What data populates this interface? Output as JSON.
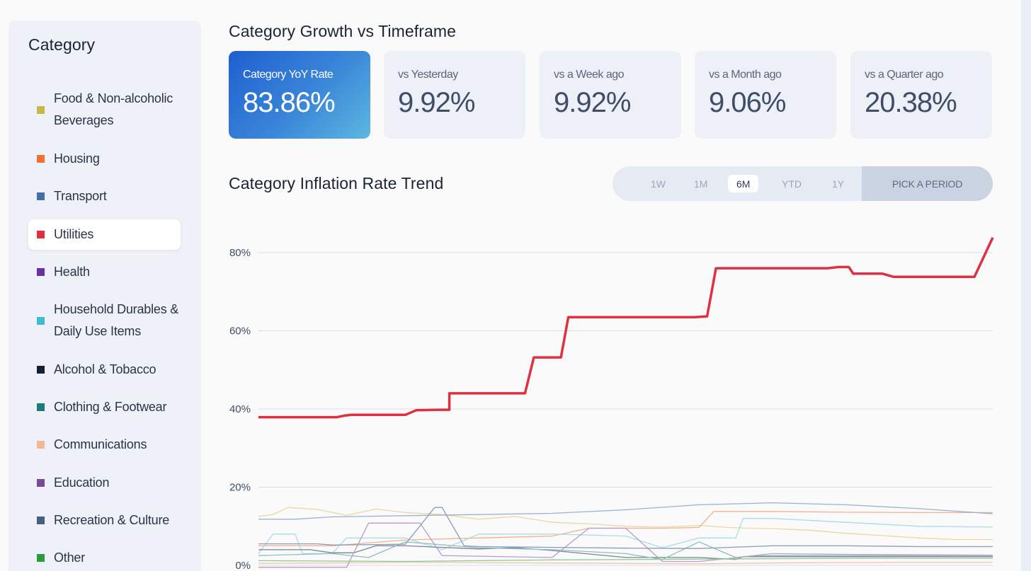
{
  "sidebar": {
    "title": "Category",
    "items": [
      {
        "label": "Food & Non-alcoholic Beverages",
        "color": "#c8b84a",
        "selected": false
      },
      {
        "label": "Housing",
        "color": "#f07030",
        "selected": false
      },
      {
        "label": "Transport",
        "color": "#4470a8",
        "selected": false
      },
      {
        "label": "Utilities",
        "color": "#e03040",
        "selected": true
      },
      {
        "label": "Health",
        "color": "#6a30a0",
        "selected": false
      },
      {
        "label": "Household Durables & Daily Use Items",
        "color": "#40bcd0",
        "selected": false
      },
      {
        "label": "Alcohol & Tobacco",
        "color": "#152030",
        "selected": false
      },
      {
        "label": "Clothing & Footwear",
        "color": "#207a78",
        "selected": false
      },
      {
        "label": "Communications",
        "color": "#f4b890",
        "selected": false
      },
      {
        "label": "Education",
        "color": "#7a4a9a",
        "selected": false
      },
      {
        "label": "Recreation & Culture",
        "color": "#465e84",
        "selected": false
      },
      {
        "label": "Other",
        "color": "#2a9a3a",
        "selected": false
      }
    ]
  },
  "growth": {
    "title": "Category Growth vs Timeframe",
    "cards": [
      {
        "label": "Category YoY Rate",
        "value": "83.86%"
      },
      {
        "label": "vs Yesterday",
        "value": "9.92%"
      },
      {
        "label": "vs a Week ago",
        "value": "9.92%"
      },
      {
        "label": "vs a Month ago",
        "value": "9.06%"
      },
      {
        "label": "vs a Quarter ago",
        "value": "20.38%"
      }
    ]
  },
  "trend": {
    "title": "Category Inflation Rate Trend",
    "periods": [
      "1W",
      "1M",
      "6M",
      "YTD",
      "1Y"
    ],
    "active_period": "6M",
    "pick_label": "PICK A PERIOD"
  },
  "chart_data": {
    "type": "line",
    "y_ticks": [
      "0%",
      "20%",
      "40%",
      "60%",
      "80%"
    ],
    "ylim": [
      0,
      88
    ],
    "grid": true,
    "highlight_color": "#e03040",
    "series": [
      {
        "category": "Utilities",
        "color": "#e03040",
        "highlight": true,
        "x": [
          0,
          0.055,
          0.107,
          0.117,
          0.127,
          0.158,
          0.2,
          0.215,
          0.245,
          0.26,
          0.26,
          0.363,
          0.375,
          0.412,
          0.422,
          0.594,
          0.611,
          0.623,
          0.642,
          0.663,
          0.775,
          0.79,
          0.804,
          0.81,
          0.82,
          0.85,
          0.865,
          0.872,
          0.95,
          0.975,
          1.0
        ],
        "values": [
          37.9,
          37.9,
          37.9,
          38.3,
          38.5,
          38.5,
          38.5,
          39.7,
          39.8,
          39.8,
          44.0,
          44.0,
          53.2,
          53.2,
          63.5,
          63.5,
          63.7,
          76.0,
          76.0,
          76.0,
          76.0,
          76.3,
          76.3,
          74.6,
          74.6,
          74.6,
          73.8,
          73.8,
          73.8,
          73.8,
          83.86
        ]
      },
      {
        "category": "Food & Non-alcoholic Beverages",
        "color": "#e8d9a0",
        "highlight": false,
        "x": [
          0,
          0.02,
          0.04,
          0.08,
          0.12,
          0.16,
          0.2,
          0.25,
          0.3,
          0.35,
          0.4,
          0.45,
          0.5,
          0.55,
          0.6,
          0.65,
          0.7,
          0.75,
          0.8,
          0.85,
          0.9,
          0.95,
          1.0
        ],
        "values": [
          12.5,
          13.0,
          14.8,
          14.3,
          12.8,
          14.4,
          13.5,
          13.0,
          11.8,
          12.5,
          11.0,
          10.6,
          10.0,
          9.8,
          10.2,
          9.6,
          9.4,
          9.0,
          8.2,
          7.6,
          7.0,
          6.6,
          6.6
        ]
      },
      {
        "category": "Housing",
        "color": "#f5b08a",
        "highlight": false,
        "x": [
          0,
          0.1,
          0.2,
          0.3,
          0.4,
          0.45,
          0.55,
          0.6,
          0.62,
          0.7,
          0.8,
          0.9,
          1.0
        ],
        "values": [
          5.0,
          5.0,
          6.5,
          7.0,
          7.5,
          9.5,
          9.5,
          9.7,
          13.8,
          13.8,
          13.6,
          13.5,
          13.5
        ]
      },
      {
        "category": "Transport",
        "color": "#9cb0d4",
        "highlight": false,
        "x": [
          0,
          0.05,
          0.1,
          0.2,
          0.3,
          0.4,
          0.5,
          0.6,
          0.7,
          0.8,
          0.9,
          1.0
        ],
        "values": [
          11.8,
          11.8,
          12.4,
          12.7,
          13.0,
          13.3,
          14.2,
          15.5,
          16.0,
          15.5,
          14.5,
          13.2
        ]
      },
      {
        "category": "Household Durables & Daily Use Items",
        "color": "#a8dce6",
        "highlight": false,
        "x": [
          0,
          0.02,
          0.05,
          0.06,
          0.1,
          0.12,
          0.2,
          0.25,
          0.3,
          0.4,
          0.5,
          0.55,
          0.6,
          0.65,
          0.66,
          0.7,
          0.8,
          0.9,
          1.0
        ],
        "values": [
          3.0,
          8.0,
          8.0,
          3.0,
          3.0,
          7.0,
          7.0,
          4.0,
          8.0,
          8.0,
          7.5,
          4.5,
          7.0,
          7.0,
          12.0,
          12.0,
          11.0,
          10.0,
          9.8
        ]
      },
      {
        "category": "Alcohol & Tobacco",
        "color": "#7a8294",
        "highlight": false,
        "x": [
          0,
          0.07,
          0.1,
          0.13,
          0.16,
          0.2,
          0.3,
          0.35,
          0.4,
          0.5,
          0.6,
          0.65,
          0.66,
          0.8,
          1.0
        ],
        "values": [
          4.0,
          4.0,
          3.2,
          3.2,
          5.0,
          5.0,
          4.2,
          4.5,
          3.8,
          2.0,
          2.0,
          1.5,
          2.2,
          2.2,
          2.2
        ]
      },
      {
        "category": "Clothing & Footwear",
        "color": "#8ec0bc",
        "highlight": false,
        "x": [
          0,
          0.1,
          0.15,
          0.2,
          0.3,
          0.4,
          0.5,
          0.55,
          0.6,
          0.65,
          0.7,
          0.8,
          1.0
        ],
        "values": [
          2.5,
          3.0,
          2.0,
          6.0,
          4.5,
          4.0,
          3.0,
          1.5,
          6.0,
          2.0,
          3.0,
          2.8,
          2.6
        ]
      },
      {
        "category": "Communications",
        "color": "#f4c4a8",
        "highlight": false,
        "x": [
          0,
          0.1,
          0.2,
          0.3,
          0.4,
          0.5,
          0.6,
          0.7,
          0.8,
          0.9,
          1.0
        ],
        "values": [
          0.5,
          0.6,
          0.8,
          0.7,
          0.6,
          0.5,
          0.4,
          0.6,
          0.7,
          0.8,
          0.8
        ]
      },
      {
        "category": "Education",
        "color": "#b89ccc",
        "highlight": false,
        "x": [
          0,
          0.12,
          0.15,
          0.22,
          0.25,
          0.4,
          0.45,
          0.5,
          0.55,
          0.6,
          0.68,
          1.0
        ],
        "values": [
          -0.5,
          -0.5,
          10.8,
          10.8,
          2.5,
          2.0,
          9.5,
          9.5,
          1.0,
          1.0,
          2.5,
          2.5
        ]
      },
      {
        "category": "Recreation & Culture",
        "color": "#8a9ab8",
        "highlight": false,
        "x": [
          0,
          0.08,
          0.1,
          0.2,
          0.24,
          0.25,
          0.28,
          0.3,
          0.4,
          0.5,
          0.6,
          0.7,
          0.8,
          0.9,
          1.0
        ],
        "values": [
          5.5,
          5.5,
          5.2,
          5.4,
          14.8,
          14.8,
          5.0,
          4.8,
          4.6,
          4.4,
          4.3,
          5.0,
          5.0,
          4.8,
          4.8
        ]
      },
      {
        "category": "Other",
        "color": "#8ccc94",
        "highlight": false,
        "x": [
          0,
          0.2,
          0.4,
          0.6,
          0.8,
          1.0
        ],
        "values": [
          1.2,
          1.0,
          1.4,
          1.6,
          1.8,
          1.8
        ]
      }
    ]
  }
}
